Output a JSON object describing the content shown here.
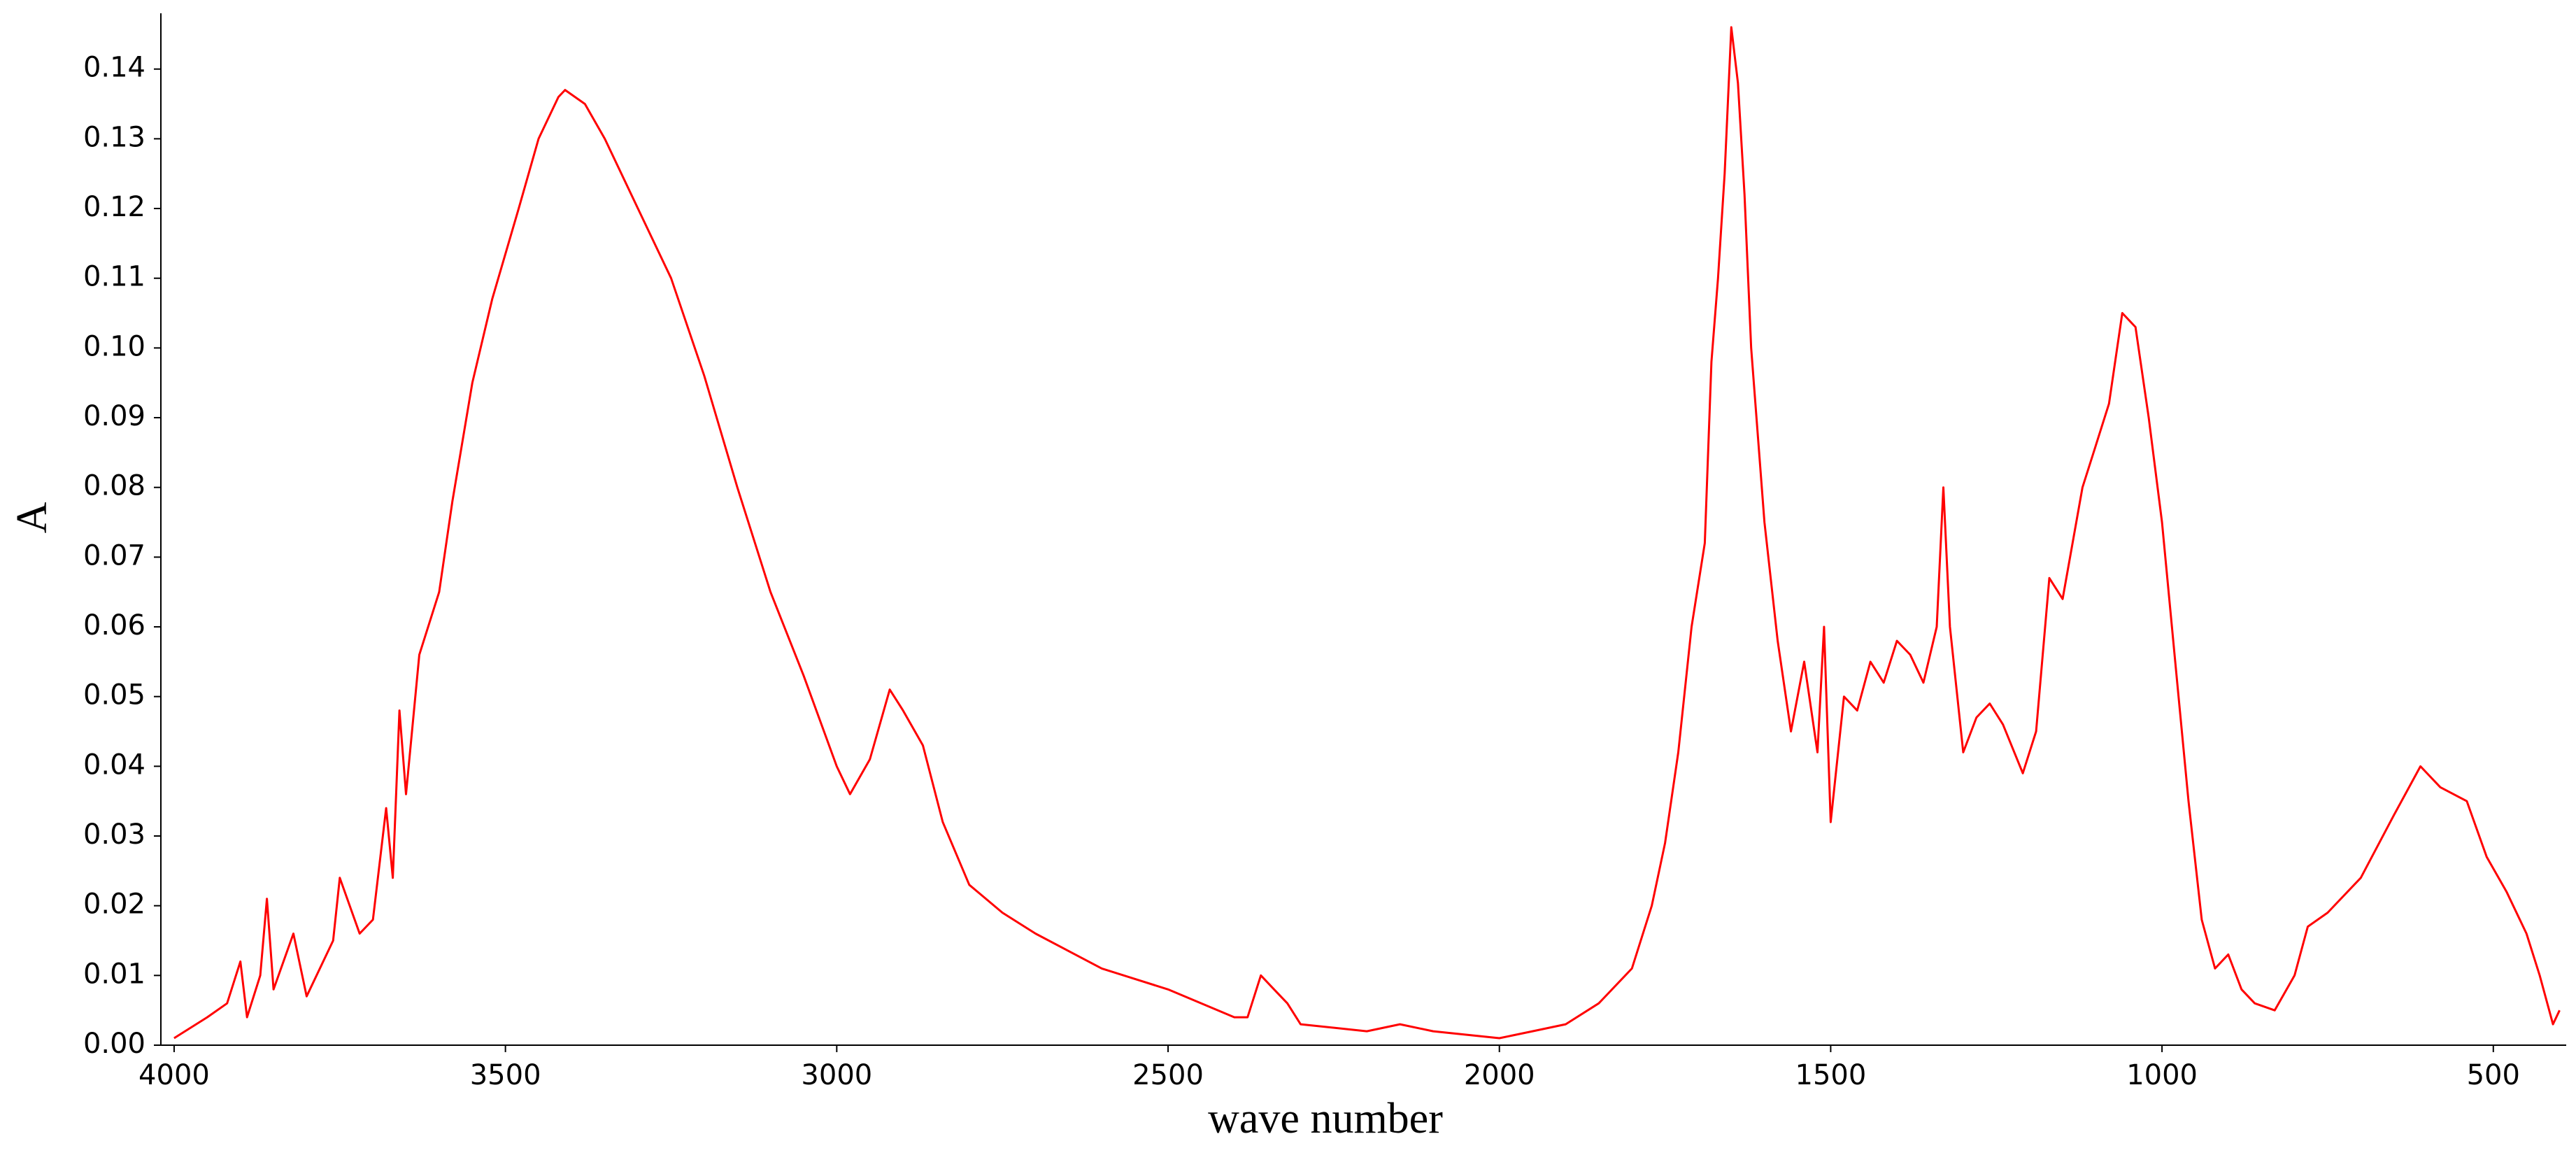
{
  "chart_data": {
    "type": "line",
    "x_label": "wave number",
    "y_label": "A",
    "xlim": [
      4020,
      390
    ],
    "ylim": [
      0,
      0.148
    ],
    "xticks": [
      4000,
      3500,
      3000,
      2500,
      2000,
      1500,
      1000,
      500
    ],
    "yticks": [
      {
        "value": 0,
        "label": "0.00"
      },
      {
        "value": 0.01,
        "label": "0.01"
      },
      {
        "value": 0.02,
        "label": "0.02"
      },
      {
        "value": 0.03,
        "label": "0.03"
      },
      {
        "value": 0.04,
        "label": "0.04"
      },
      {
        "value": 0.05,
        "label": "0.05"
      },
      {
        "value": 0.06,
        "label": "0.06"
      },
      {
        "value": 0.07,
        "label": "0.07"
      },
      {
        "value": 0.08,
        "label": "0.08"
      },
      {
        "value": 0.09,
        "label": "0.09"
      },
      {
        "value": 0.1,
        "label": "0.10"
      },
      {
        "value": 0.11,
        "label": "0.11"
      },
      {
        "value": 0.12,
        "label": "0.12"
      },
      {
        "value": 0.13,
        "label": "0.13"
      },
      {
        "value": 0.14,
        "label": "0.14"
      }
    ],
    "color": "#ff0000",
    "x": [
      4000,
      3950,
      3920,
      3900,
      3890,
      3870,
      3860,
      3850,
      3820,
      3800,
      3760,
      3750,
      3720,
      3700,
      3680,
      3670,
      3660,
      3650,
      3630,
      3600,
      3580,
      3550,
      3520,
      3480,
      3450,
      3420,
      3410,
      3380,
      3350,
      3300,
      3250,
      3200,
      3150,
      3100,
      3050,
      3000,
      2980,
      2950,
      2920,
      2900,
      2870,
      2840,
      2800,
      2750,
      2700,
      2600,
      2500,
      2400,
      2380,
      2360,
      2340,
      2320,
      2300,
      2200,
      2150,
      2100,
      2000,
      1950,
      1900,
      1850,
      1800,
      1770,
      1750,
      1730,
      1710,
      1690,
      1680,
      1670,
      1660,
      1650,
      1640,
      1630,
      1620,
      1600,
      1580,
      1560,
      1540,
      1520,
      1510,
      1500,
      1480,
      1460,
      1440,
      1420,
      1400,
      1380,
      1360,
      1340,
      1330,
      1320,
      1300,
      1280,
      1260,
      1240,
      1210,
      1190,
      1170,
      1150,
      1120,
      1100,
      1080,
      1060,
      1040,
      1020,
      1000,
      980,
      960,
      940,
      920,
      900,
      880,
      860,
      830,
      800,
      780,
      750,
      700,
      650,
      610,
      580,
      540,
      510,
      480,
      450,
      430,
      410,
      400
    ],
    "values": [
      0.001,
      0.004,
      0.006,
      0.012,
      0.004,
      0.01,
      0.021,
      0.008,
      0.016,
      0.007,
      0.015,
      0.024,
      0.016,
      0.018,
      0.034,
      0.024,
      0.048,
      0.036,
      0.056,
      0.065,
      0.078,
      0.095,
      0.107,
      0.12,
      0.13,
      0.136,
      0.137,
      0.135,
      0.13,
      0.12,
      0.11,
      0.096,
      0.08,
      0.065,
      0.053,
      0.04,
      0.036,
      0.041,
      0.051,
      0.048,
      0.043,
      0.032,
      0.023,
      0.019,
      0.016,
      0.011,
      0.008,
      0.004,
      0.004,
      0.01,
      0.008,
      0.006,
      0.003,
      0.002,
      0.003,
      0.002,
      0.001,
      0.002,
      0.003,
      0.006,
      0.011,
      0.02,
      0.029,
      0.042,
      0.06,
      0.072,
      0.098,
      0.11,
      0.125,
      0.146,
      0.138,
      0.122,
      0.1,
      0.075,
      0.058,
      0.045,
      0.055,
      0.042,
      0.06,
      0.032,
      0.05,
      0.048,
      0.055,
      0.052,
      0.058,
      0.056,
      0.052,
      0.06,
      0.08,
      0.06,
      0.042,
      0.047,
      0.049,
      0.046,
      0.039,
      0.045,
      0.067,
      0.064,
      0.08,
      0.086,
      0.092,
      0.105,
      0.103,
      0.09,
      0.075,
      0.055,
      0.035,
      0.018,
      0.011,
      0.013,
      0.008,
      0.006,
      0.005,
      0.01,
      0.017,
      0.019,
      0.024,
      0.033,
      0.04,
      0.037,
      0.035,
      0.027,
      0.022,
      0.016,
      0.01,
      0.003,
      0.005
    ]
  }
}
